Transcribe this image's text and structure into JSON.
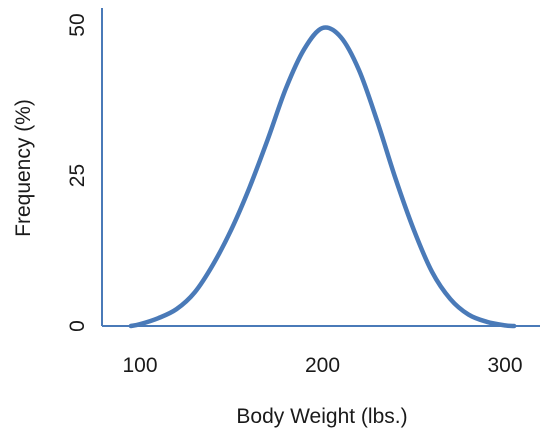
{
  "chart_data": {
    "type": "line",
    "title": "",
    "xlabel": "Body Weight (lbs.)",
    "ylabel": "Frequency (%)",
    "xlim": [
      95,
      305
    ],
    "ylim": [
      0,
      50
    ],
    "x_ticks": [
      100,
      200,
      300
    ],
    "x_tick_labels": [
      "100",
      "200",
      "300"
    ],
    "y_ticks": [
      0,
      25,
      50
    ],
    "y_tick_labels": [
      "0",
      "25",
      "50"
    ],
    "grid": false,
    "legend": "none",
    "series": [
      {
        "color": "#4a7ab8",
        "x": [
          95,
          100,
          110,
          120,
          130,
          140,
          150,
          160,
          170,
          180,
          190,
          200,
          210,
          220,
          230,
          240,
          250,
          260,
          270,
          280,
          290,
          300,
          305
        ],
        "y": [
          0.0,
          0.3,
          1.3,
          2.8,
          5.6,
          10.2,
          16.0,
          23.0,
          31.0,
          39.5,
          46.0,
          49.5,
          48.0,
          42.5,
          34.0,
          24.5,
          16.0,
          9.0,
          4.5,
          1.9,
          0.7,
          0.1,
          0.0
        ]
      }
    ],
    "axis_color": "#4a7ab8"
  }
}
